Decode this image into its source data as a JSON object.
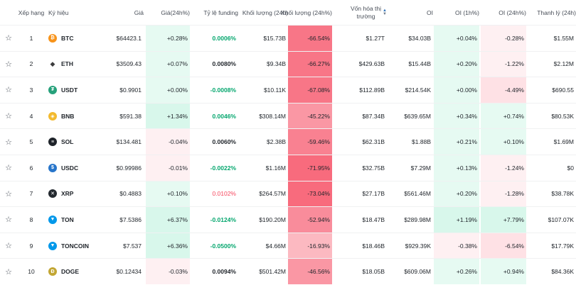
{
  "header": {
    "rank": "Xếp hạng",
    "symbol": "Ký hiệu",
    "price": "Giá",
    "price_change_24h": "Giá(24h%)",
    "funding_rate": "Tỷ lệ funding",
    "volume_24h": "Khối lượng (24h)",
    "volume_change_24h": "Khối lượng (24h%)",
    "market_cap_line1": "Vốn hóa thị",
    "market_cap_line2": "trường",
    "oi": "OI",
    "oi_1h": "OI (1h%)",
    "oi_24h": "OI (24h%)",
    "liquidation": "Thanh lý (24h)"
  },
  "rows": [
    {
      "rank": "1",
      "symbol": "BTC",
      "icon": "bitcoin-icon",
      "icon_color": "#f7931a",
      "icon_glyph": "₿",
      "price": "$64423.1",
      "chg": "+0.28%",
      "chg_dir": "up",
      "funding": "0.0006%",
      "fund_dir": "pos",
      "volume": "$15.73B",
      "vchg": "-66.54%",
      "vshade": 0.9,
      "mcap": "$1.27T",
      "oi": "$34.03B",
      "oi1": "+0.04%",
      "oi1_dir": "up",
      "oi24": "-0.28%",
      "oi24_dir": "down",
      "liq": "$1.55M"
    },
    {
      "rank": "2",
      "symbol": "ETH",
      "icon": "ethereum-icon",
      "icon_color": "#ffffff",
      "icon_glyph": "◆",
      "price": "$3509.43",
      "chg": "+0.07%",
      "chg_dir": "up",
      "funding": "0.0080%",
      "fund_dir": "neutral",
      "volume": "$9.34B",
      "vchg": "-66.27%",
      "vshade": 0.9,
      "mcap": "$429.63B",
      "oi": "$15.44B",
      "oi1": "+0.20%",
      "oi1_dir": "up",
      "oi24": "-1.22%",
      "oi24_dir": "down",
      "liq": "$2.12M"
    },
    {
      "rank": "3",
      "symbol": "USDT",
      "icon": "tether-icon",
      "icon_color": "#26a17b",
      "icon_glyph": "₮",
      "price": "$0.9901",
      "chg": "+0.00%",
      "chg_dir": "up",
      "funding": "-0.0008%",
      "fund_dir": "neg",
      "volume": "$10.11K",
      "vchg": "-67.08%",
      "vshade": 0.9,
      "mcap": "$112.89B",
      "oi": "$214.54K",
      "oi1": "+0.00%",
      "oi1_dir": "up",
      "oi24": "-4.49%",
      "oi24_dir": "down",
      "liq": "$690.55"
    },
    {
      "rank": "4",
      "symbol": "BNB",
      "icon": "bnb-icon",
      "icon_color": "#f3ba2f",
      "icon_glyph": "◈",
      "price": "$591.38",
      "chg": "+1.34%",
      "chg_dir": "up",
      "funding": "0.0046%",
      "fund_dir": "pos",
      "volume": "$308.14M",
      "vchg": "-45.22%",
      "vshade": 0.6,
      "mcap": "$87.34B",
      "oi": "$639.65M",
      "oi1": "+0.34%",
      "oi1_dir": "up",
      "oi24": "+0.74%",
      "oi24_dir": "up",
      "liq": "$80.53K"
    },
    {
      "rank": "5",
      "symbol": "SOL",
      "icon": "solana-icon",
      "icon_color": "#1e2329",
      "icon_glyph": "≡",
      "price": "$134.481",
      "chg": "-0.04%",
      "chg_dir": "down",
      "funding": "0.0060%",
      "fund_dir": "neutral",
      "volume": "$2.38B",
      "vchg": "-59.46%",
      "vshade": 0.8,
      "mcap": "$62.31B",
      "oi": "$1.88B",
      "oi1": "+0.21%",
      "oi1_dir": "up",
      "oi24": "+0.10%",
      "oi24_dir": "up",
      "liq": "$1.69M"
    },
    {
      "rank": "6",
      "symbol": "USDC",
      "icon": "usdc-icon",
      "icon_color": "#2775ca",
      "icon_glyph": "$",
      "price": "$0.99986",
      "chg": "-0.01%",
      "chg_dir": "down",
      "funding": "-0.0022%",
      "fund_dir": "neg",
      "volume": "$1.16M",
      "vchg": "-71.95%",
      "vshade": 1.0,
      "mcap": "$32.75B",
      "oi": "$7.29M",
      "oi1": "+0.13%",
      "oi1_dir": "up",
      "oi24": "-1.24%",
      "oi24_dir": "down",
      "liq": "$0"
    },
    {
      "rank": "7",
      "symbol": "XRP",
      "icon": "xrp-icon",
      "icon_color": "#23292f",
      "icon_glyph": "✕",
      "price": "$0.4883",
      "chg": "+0.10%",
      "chg_dir": "up",
      "funding": "0.0102%",
      "fund_dir": "hot",
      "volume": "$264.57M",
      "vchg": "-73.04%",
      "vshade": 1.0,
      "mcap": "$27.17B",
      "oi": "$561.46M",
      "oi1": "+0.20%",
      "oi1_dir": "up",
      "oi24": "-1.28%",
      "oi24_dir": "down",
      "liq": "$38.78K"
    },
    {
      "rank": "8",
      "symbol": "TON",
      "icon": "ton-icon",
      "icon_color": "#0098ea",
      "icon_glyph": "▼",
      "price": "$7.5386",
      "chg": "+6.37%",
      "chg_dir": "up",
      "funding": "-0.0124%",
      "fund_dir": "neg",
      "volume": "$190.20M",
      "vchg": "-52.94%",
      "vshade": 0.7,
      "mcap": "$18.47B",
      "oi": "$289.98M",
      "oi1": "+1.19%",
      "oi1_dir": "up",
      "oi24": "+7.79%",
      "oi24_dir": "up",
      "liq": "$107.07K"
    },
    {
      "rank": "9",
      "symbol": "TONCOIN",
      "icon": "toncoin-icon",
      "icon_color": "#0098ea",
      "icon_glyph": "▼",
      "price": "$7.537",
      "chg": "+6.36%",
      "chg_dir": "up",
      "funding": "-0.0500%",
      "fund_dir": "neg",
      "volume": "$4.66M",
      "vchg": "-16.93%",
      "vshade": 0.3,
      "mcap": "$18.46B",
      "oi": "$929.39K",
      "oi1": "-0.38%",
      "oi1_dir": "down",
      "oi24": "-6.54%",
      "oi24_dir": "down",
      "liq": "$17.79K"
    },
    {
      "rank": "10",
      "symbol": "DOGE",
      "icon": "doge-icon",
      "icon_color": "#c2a633",
      "icon_glyph": "Ð",
      "price": "$0.12434",
      "chg": "-0.03%",
      "chg_dir": "down",
      "funding": "0.0094%",
      "fund_dir": "neutral",
      "volume": "$501.42M",
      "vchg": "-46.56%",
      "vshade": 0.6,
      "mcap": "$18.05B",
      "oi": "$609.06M",
      "oi1": "+0.26%",
      "oi1_dir": "up",
      "oi24": "+0.94%",
      "oi24_dir": "up",
      "liq": "$84.36K"
    }
  ]
}
